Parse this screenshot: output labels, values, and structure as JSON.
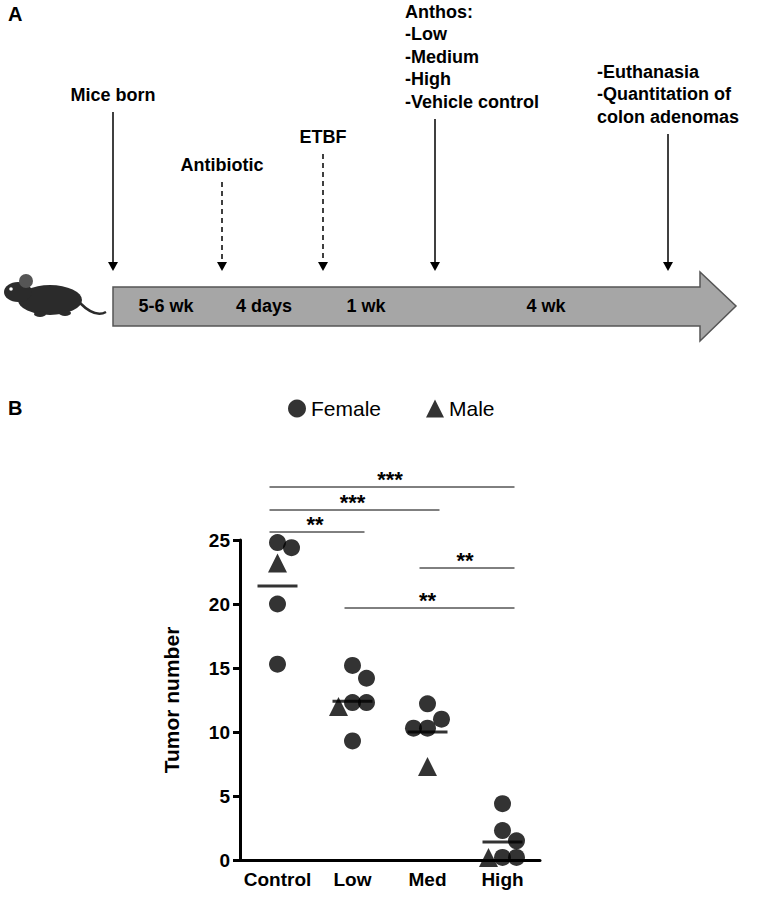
{
  "panel_labels": [
    "A",
    "B"
  ],
  "timeline": {
    "events": [
      {
        "label": [
          "Mice born"
        ],
        "line_style": "solid"
      },
      {
        "label": [
          "Antibiotic"
        ],
        "line_style": "dashed"
      },
      {
        "label": [
          "ETBF"
        ],
        "line_style": "dashed"
      },
      {
        "label": [
          "Anthos:",
          "-Low",
          "-Medium",
          "-High",
          "-Vehicle control"
        ],
        "line_style": "solid"
      },
      {
        "label": [
          "-Euthanasia",
          "-Quantitation of",
          "colon adenomas"
        ],
        "line_style": "solid"
      }
    ],
    "intervals": [
      "5-6 wk",
      "4 days",
      "1 wk",
      "4 wk"
    ]
  },
  "chart_data": {
    "type": "scatter",
    "y_label": "Tumor number",
    "categories": [
      "Control",
      "Low",
      "Med",
      "High"
    ],
    "series": [
      {
        "name": "Female",
        "marker": "circle",
        "color": "#000000",
        "values": [
          [
            24.8,
            24.4,
            20.0,
            15.3
          ],
          [
            15.2,
            14.2,
            12.3,
            12.3,
            9.3
          ],
          [
            12.2,
            11.0,
            10.3,
            10.3
          ],
          [
            4.4,
            2.3,
            1.5,
            0.2,
            0.2
          ]
        ]
      },
      {
        "name": "Male",
        "marker": "triangle",
        "color": "#000000",
        "values": [
          [
            23.2
          ],
          [
            12.0
          ],
          [
            7.3
          ],
          [
            0.2
          ]
        ]
      }
    ],
    "means": [
      21.4,
      12.4,
      10.0,
      1.4
    ],
    "comparisons": [
      {
        "groups": [
          "Control",
          "High"
        ],
        "label": "***"
      },
      {
        "groups": [
          "Control",
          "Med"
        ],
        "label": "***"
      },
      {
        "groups": [
          "Control",
          "Low"
        ],
        "label": "**"
      },
      {
        "groups": [
          "Med",
          "High"
        ],
        "label": "**"
      },
      {
        "groups": [
          "Low",
          "High"
        ],
        "label": "**"
      }
    ],
    "ylim": [
      0,
      25
    ],
    "yticks": [
      0,
      5,
      10,
      15,
      20,
      25
    ],
    "grid": false,
    "legend": "top"
  }
}
